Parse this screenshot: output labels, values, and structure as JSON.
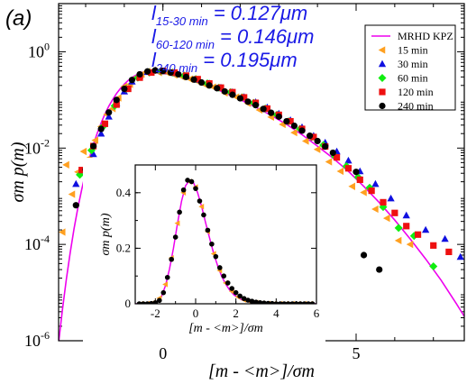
{
  "panel_label": "(a)",
  "annotations": [
    {
      "prefix": "l",
      "sub": "15-30 min",
      "text": " = 0.127μm"
    },
    {
      "prefix": "l",
      "sub": "60-120 min",
      "text": " = 0.146μm"
    },
    {
      "prefix": "l",
      "sub": "240 min",
      "text": " = 0.195μm"
    }
  ],
  "colors": {
    "kpz": "#ee00ee",
    "s15": "#ffa020",
    "s30": "#1010e0",
    "s60": "#10ee10",
    "s120": "#ee1010",
    "s240": "#000000",
    "annotation": "#1a1ae6"
  },
  "chart_data": [
    {
      "id": "main",
      "type": "scatter",
      "yscale": "log",
      "xlim": [
        -2.7,
        7.8
      ],
      "ylim": [
        1e-06,
        10
      ],
      "xticks": [
        0,
        5
      ],
      "xtick_labels": [
        "0",
        "5"
      ],
      "yticks": [
        1e-06,
        0.0001,
        0.01,
        1
      ],
      "ytick_labels": [
        "10",
        "10",
        "10",
        "10"
      ],
      "ytick_exponents": [
        "-6",
        "-4",
        "-2",
        "0"
      ],
      "xlabel": "[m - <m>]/σm",
      "ylabel": "σm p(m)",
      "legend_position": "top-right",
      "series": [
        {
          "name": "MRHD KPZ",
          "kind": "line",
          "color_key": "kpz",
          "x": [
            -2.7,
            -2.6,
            -2.5,
            -2.4,
            -2.3,
            -2.2,
            -2.1,
            -2.0,
            -1.9,
            -1.8,
            -1.7,
            -1.6,
            -1.5,
            -1.4,
            -1.3,
            -1.2,
            -1.1,
            -1.0,
            -0.9,
            -0.8,
            -0.7,
            -0.6,
            -0.5,
            -0.4,
            -0.3,
            -0.2,
            -0.1,
            0.0,
            0.2,
            0.4,
            0.6,
            0.8,
            1.0,
            1.3,
            1.6,
            2.0,
            2.4,
            2.8,
            3.2,
            3.6,
            4.0,
            4.4,
            4.8,
            5.2,
            5.6,
            6.0,
            6.4,
            6.8,
            7.2,
            7.6,
            7.8
          ],
          "y": [
            9e-07,
            4.5e-06,
            1.9e-05,
            6.8e-05,
            0.00021,
            0.00058,
            0.0014,
            0.0031,
            0.0063,
            0.0118,
            0.0205,
            0.033,
            0.051,
            0.074,
            0.102,
            0.136,
            0.173,
            0.213,
            0.253,
            0.292,
            0.327,
            0.357,
            0.38,
            0.395,
            0.403,
            0.404,
            0.399,
            0.389,
            0.36,
            0.326,
            0.29,
            0.255,
            0.222,
            0.178,
            0.141,
            0.101,
            0.071,
            0.048,
            0.031,
            0.019,
            0.011,
            0.0062,
            0.0033,
            0.0016,
            0.00074,
            0.00032,
            0.00013,
            5e-05,
            1.8e-05,
            5.8e-06,
            3.2e-06
          ]
        },
        {
          "name": "15 min",
          "kind": "marker",
          "marker": "triangle-left",
          "color_key": "s15",
          "x": [
            -2.6,
            -2.5,
            -2.35,
            -2.2,
            -2.05,
            -1.9,
            -1.75,
            -1.6,
            -1.45,
            -1.3,
            -1.15,
            -1.0,
            -0.85,
            -0.7,
            -0.55,
            -0.4,
            -0.25,
            -0.1,
            0.1,
            0.3,
            0.5,
            0.7,
            0.9,
            1.1,
            1.3,
            1.6,
            1.9,
            2.2,
            2.5,
            2.8,
            3.1,
            3.4,
            3.7,
            4.0,
            4.3,
            4.6,
            4.9,
            5.2,
            5.5,
            5.8,
            6.1,
            6.4
          ],
          "y": [
            0.00018,
            0.0045,
            0.0011,
            0.0032,
            0.0085,
            0.0062,
            0.0145,
            0.028,
            0.05,
            0.066,
            0.11,
            0.19,
            0.21,
            0.29,
            0.34,
            0.39,
            0.41,
            0.37,
            0.37,
            0.33,
            0.3,
            0.27,
            0.24,
            0.205,
            0.185,
            0.14,
            0.115,
            0.085,
            0.062,
            0.044,
            0.031,
            0.021,
            0.014,
            0.0094,
            0.0052,
            0.0033,
            0.0016,
            0.0012,
            0.00054,
            0.00035,
            0.00012,
            0.0001
          ]
        },
        {
          "name": "30 min",
          "kind": "marker",
          "marker": "triangle-up",
          "color_key": "s30",
          "x": [
            -2.25,
            -2.0,
            -1.8,
            -1.6,
            -1.4,
            -1.2,
            -1.0,
            -0.8,
            -0.6,
            -0.4,
            -0.2,
            0.0,
            0.3,
            0.6,
            0.9,
            1.2,
            1.5,
            1.8,
            2.1,
            2.4,
            2.7,
            3.0,
            3.3,
            3.6,
            3.9,
            4.2,
            4.5,
            4.8,
            5.1,
            5.5,
            5.9,
            6.3,
            6.8,
            7.3,
            7.7
          ],
          "y": [
            0.0018,
            0.0032,
            0.0075,
            0.02,
            0.045,
            0.085,
            0.15,
            0.24,
            0.32,
            0.38,
            0.41,
            0.39,
            0.36,
            0.31,
            0.26,
            0.22,
            0.18,
            0.145,
            0.115,
            0.09,
            0.07,
            0.052,
            0.038,
            0.027,
            0.018,
            0.013,
            0.0085,
            0.0055,
            0.0033,
            0.0018,
            0.0009,
            0.0004,
            0.0002,
            0.00013,
            5.5e-05
          ]
        },
        {
          "name": "60 min",
          "kind": "marker",
          "marker": "diamond",
          "color_key": "s60",
          "x": [
            -2.15,
            -1.85,
            -1.55,
            -1.25,
            -0.95,
            -0.65,
            -0.35,
            -0.05,
            0.25,
            0.55,
            0.85,
            1.15,
            1.45,
            1.75,
            2.05,
            2.35,
            2.65,
            2.95,
            3.25,
            3.55,
            3.85,
            4.15,
            4.45,
            4.75,
            5.05,
            5.35,
            5.7,
            6.1,
            6.5,
            7.0
          ],
          "y": [
            0.0028,
            0.009,
            0.028,
            0.075,
            0.17,
            0.29,
            0.37,
            0.4,
            0.37,
            0.32,
            0.27,
            0.22,
            0.18,
            0.145,
            0.113,
            0.087,
            0.066,
            0.049,
            0.036,
            0.025,
            0.017,
            0.0115,
            0.0068,
            0.0042,
            0.0025,
            0.0015,
            0.0006,
            0.00022,
            0.00015,
            3.5e-05
          ]
        },
        {
          "name": "120 min",
          "kind": "marker",
          "marker": "square",
          "color_key": "s120",
          "x": [
            -2.1,
            -1.8,
            -1.5,
            -1.2,
            -0.9,
            -0.6,
            -0.3,
            0.0,
            0.3,
            0.6,
            0.9,
            1.2,
            1.5,
            1.8,
            2.1,
            2.4,
            2.7,
            3.0,
            3.3,
            3.6,
            3.9,
            4.2,
            4.5,
            4.8,
            5.1,
            5.4,
            5.7,
            6.0,
            6.3,
            6.6,
            7.0,
            7.4
          ],
          "y": [
            0.0035,
            0.011,
            0.032,
            0.08,
            0.17,
            0.29,
            0.37,
            0.4,
            0.37,
            0.32,
            0.27,
            0.22,
            0.18,
            0.145,
            0.113,
            0.087,
            0.066,
            0.049,
            0.036,
            0.025,
            0.017,
            0.0108,
            0.0064,
            0.0038,
            0.0022,
            0.0013,
            0.00075,
            0.00045,
            0.00024,
            0.00016,
            9.5e-05,
            7e-05
          ]
        },
        {
          "name": "240 min",
          "kind": "marker",
          "marker": "circle",
          "color_key": "s240",
          "x": [
            -2.25,
            -2.0,
            -1.8,
            -1.6,
            -1.4,
            -1.2,
            -1.0,
            -0.8,
            -0.6,
            -0.4,
            -0.2,
            0.0,
            0.2,
            0.4,
            0.6,
            0.8,
            1.0,
            1.2,
            1.4,
            1.6,
            1.8,
            2.0,
            2.2,
            2.4,
            2.6,
            2.8,
            3.0,
            3.2,
            3.4,
            3.6,
            3.8,
            4.0,
            4.2,
            4.4,
            5.0,
            5.2,
            5.6
          ],
          "y": [
            0.00065,
            0.0036,
            0.011,
            0.025,
            0.055,
            0.1,
            0.17,
            0.26,
            0.34,
            0.39,
            0.41,
            0.4,
            0.37,
            0.34,
            0.3,
            0.265,
            0.23,
            0.2,
            0.175,
            0.15,
            0.128,
            0.108,
            0.092,
            0.078,
            0.065,
            0.054,
            0.045,
            0.036,
            0.029,
            0.023,
            0.018,
            0.014,
            0.0108,
            0.008,
            0.0032,
            6e-05,
            3e-05
          ]
        }
      ]
    },
    {
      "id": "inset",
      "type": "scatter",
      "yscale": "linear",
      "xlim": [
        -3,
        6
      ],
      "ylim": [
        0,
        0.5
      ],
      "xticks": [
        -2,
        0,
        2,
        4,
        6
      ],
      "xtick_labels": [
        "-2",
        "0",
        "2",
        "4",
        "6"
      ],
      "yticks": [
        0,
        0.2,
        0.4
      ],
      "ytick_labels": [
        "0",
        "0.2",
        "0.4"
      ],
      "xlabel": "[m - <m>]/σm",
      "ylabel": "σm p(m)",
      "series": [
        {
          "name": "MRHD KPZ",
          "kind": "line",
          "color_key": "kpz",
          "x": [
            -3.0,
            -2.6,
            -2.3,
            -2.1,
            -1.9,
            -1.7,
            -1.5,
            -1.3,
            -1.1,
            -0.9,
            -0.7,
            -0.5,
            -0.3,
            -0.1,
            0.1,
            0.3,
            0.5,
            0.7,
            0.9,
            1.1,
            1.3,
            1.5,
            1.7,
            1.9,
            2.1,
            2.3,
            2.6,
            3.0,
            3.5,
            4.0,
            5.0,
            6.0
          ],
          "y": [
            0.0,
            0.0,
            0.0,
            0.003,
            0.008,
            0.025,
            0.065,
            0.125,
            0.2,
            0.29,
            0.37,
            0.425,
            0.445,
            0.435,
            0.4,
            0.35,
            0.29,
            0.235,
            0.18,
            0.135,
            0.098,
            0.07,
            0.048,
            0.032,
            0.022,
            0.014,
            0.007,
            0.003,
            0.001,
            0.0,
            0.0,
            0.0
          ]
        },
        {
          "name": "15 min",
          "kind": "marker",
          "marker": "triangle-left",
          "color_key": "s15",
          "x": [
            -2.7,
            -2.4,
            -2.1,
            -1.8,
            -1.5,
            -1.2,
            -0.9,
            -0.6,
            -0.3,
            0.0,
            0.3,
            0.6,
            0.9,
            1.2,
            1.5,
            1.8,
            2.1,
            2.4,
            2.7,
            3.0,
            3.3,
            3.6,
            3.9,
            4.2,
            4.5,
            4.8,
            5.1,
            5.4,
            5.7
          ],
          "y": [
            0.0,
            0.0,
            0.004,
            0.02,
            0.07,
            0.165,
            0.29,
            0.4,
            0.44,
            0.42,
            0.35,
            0.26,
            0.18,
            0.12,
            0.075,
            0.045,
            0.025,
            0.014,
            0.008,
            0.004,
            0.002,
            0.001,
            0.0,
            0.0,
            0.0,
            0.0,
            0.0,
            0.0,
            0.0
          ]
        },
        {
          "name": "240 min",
          "kind": "marker",
          "marker": "circle",
          "color_key": "s240",
          "x": [
            -2.8,
            -2.6,
            -2.4,
            -2.2,
            -2.0,
            -1.8,
            -1.6,
            -1.4,
            -1.2,
            -1.0,
            -0.8,
            -0.6,
            -0.4,
            -0.2,
            0.0,
            0.2,
            0.4,
            0.6,
            0.8,
            1.0,
            1.2,
            1.4,
            1.6,
            1.8,
            2.0,
            2.2,
            2.4,
            2.6,
            2.8,
            3.0,
            3.2,
            3.4,
            3.6,
            3.8,
            4.0,
            4.2,
            4.4,
            4.6,
            4.8,
            5.0,
            5.2,
            5.4,
            5.6,
            5.8
          ],
          "y": [
            0.0,
            0.0,
            0.0,
            0.001,
            0.004,
            0.012,
            0.04,
            0.095,
            0.16,
            0.24,
            0.33,
            0.41,
            0.445,
            0.44,
            0.415,
            0.37,
            0.32,
            0.265,
            0.215,
            0.17,
            0.13,
            0.1,
            0.075,
            0.055,
            0.04,
            0.028,
            0.019,
            0.013,
            0.009,
            0.006,
            0.004,
            0.0025,
            0.0015,
            0.001,
            0.0,
            0.0,
            0.0,
            0.0,
            0.0,
            0.0,
            0.0,
            0.0,
            0.0,
            0.0
          ]
        }
      ]
    }
  ]
}
